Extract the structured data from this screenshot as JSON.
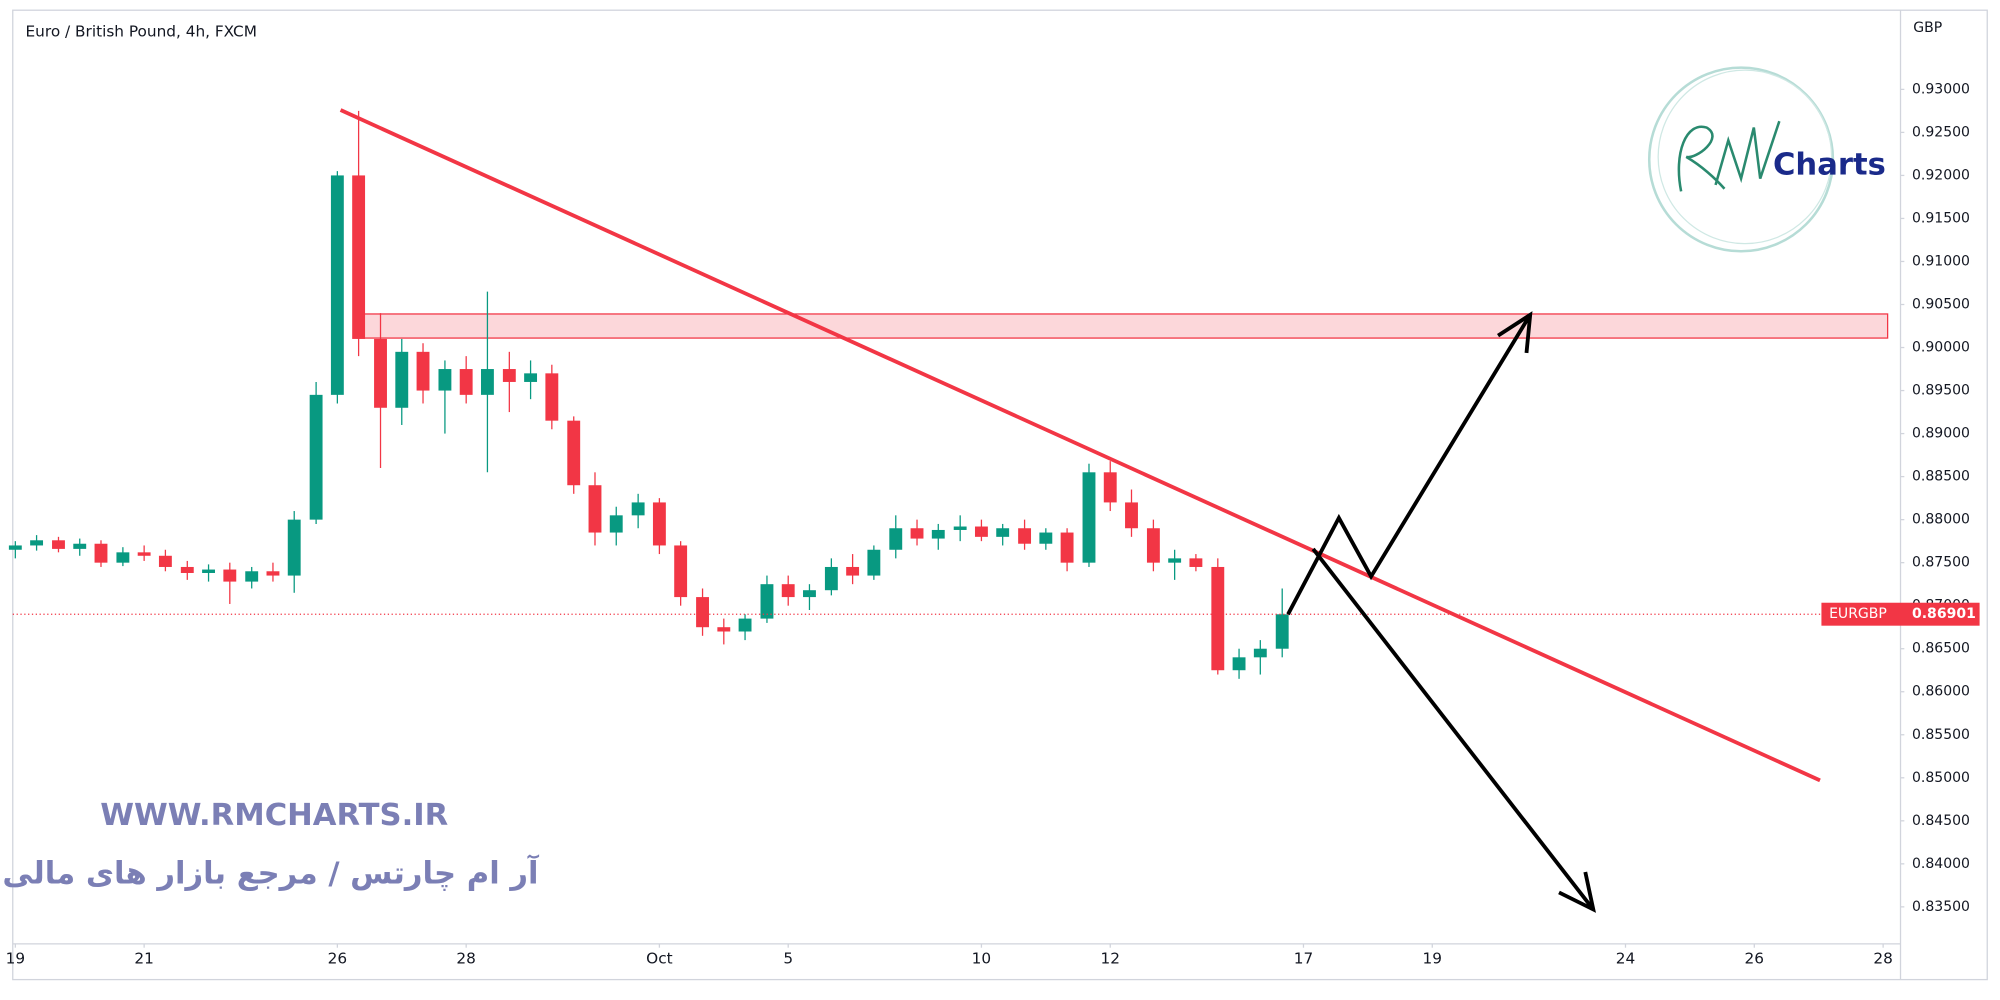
{
  "chart_data": {
    "type": "candlestick",
    "title": "Euro / British Pound, 4h, FXCM",
    "currency": "GBP",
    "x": [
      0,
      0.33,
      0.67,
      1,
      1.33,
      1.67,
      2,
      2.33,
      2.67,
      3,
      3.33,
      3.67,
      4,
      4.33,
      4.67,
      5,
      5.33,
      5.67,
      6,
      6.33,
      6.67,
      7,
      7.33,
      7.67,
      8,
      8.33,
      8.67,
      9,
      9.33,
      9.67,
      10,
      10.33,
      10.67,
      11,
      11.33,
      11.67,
      12,
      12.33,
      12.67,
      13,
      13.33,
      13.67,
      14,
      14.33,
      14.67,
      15,
      15.33,
      15.67,
      16,
      16.33,
      16.67,
      17,
      17.33,
      17.67,
      18,
      18.33,
      18.67,
      19,
      19.33,
      19.67
    ],
    "open": [
      0.8765,
      0.877,
      0.8776,
      0.8766,
      0.8772,
      0.875,
      0.8762,
      0.8758,
      0.8745,
      0.8738,
      0.8742,
      0.8728,
      0.874,
      0.8735,
      0.88,
      0.8945,
      0.92,
      0.901,
      0.893,
      0.8995,
      0.895,
      0.8975,
      0.8945,
      0.8975,
      0.896,
      0.897,
      0.8915,
      0.884,
      0.8785,
      0.8805,
      0.882,
      0.877,
      0.871,
      0.8675,
      0.867,
      0.8685,
      0.8725,
      0.871,
      0.8718,
      0.8745,
      0.8735,
      0.8765,
      0.879,
      0.8778,
      0.8788,
      0.8792,
      0.878,
      0.879,
      0.8772,
      0.8785,
      0.875,
      0.8855,
      0.882,
      0.879,
      0.875,
      0.8755,
      0.8745,
      0.8625,
      0.864,
      0.865
    ],
    "high": [
      0.8775,
      0.8782,
      0.878,
      0.8778,
      0.8776,
      0.8768,
      0.877,
      0.8765,
      0.8752,
      0.8748,
      0.875,
      0.8745,
      0.875,
      0.881,
      0.896,
      0.9205,
      0.9275,
      0.904,
      0.901,
      0.9005,
      0.8985,
      0.899,
      0.9065,
      0.8995,
      0.8985,
      0.898,
      0.892,
      0.8855,
      0.8815,
      0.883,
      0.8825,
      0.8775,
      0.872,
      0.8685,
      0.869,
      0.8735,
      0.8735,
      0.8725,
      0.8755,
      0.876,
      0.877,
      0.8805,
      0.88,
      0.8795,
      0.8805,
      0.88,
      0.8795,
      0.88,
      0.879,
      0.879,
      0.8865,
      0.8868,
      0.8835,
      0.88,
      0.8765,
      0.876,
      0.8755,
      0.865,
      0.866,
      0.872
    ],
    "low": [
      0.8755,
      0.8764,
      0.8762,
      0.8758,
      0.8745,
      0.8746,
      0.8752,
      0.874,
      0.873,
      0.8728,
      0.8702,
      0.872,
      0.8728,
      0.8715,
      0.8795,
      0.8935,
      0.899,
      0.886,
      0.891,
      0.8935,
      0.89,
      0.8935,
      0.8855,
      0.8925,
      0.894,
      0.8905,
      0.883,
      0.877,
      0.877,
      0.879,
      0.876,
      0.87,
      0.8665,
      0.8655,
      0.866,
      0.868,
      0.87,
      0.8695,
      0.8712,
      0.8725,
      0.873,
      0.8755,
      0.877,
      0.8765,
      0.8775,
      0.8775,
      0.877,
      0.8765,
      0.8765,
      0.874,
      0.8745,
      0.881,
      0.878,
      0.874,
      0.873,
      0.874,
      0.862,
      0.8615,
      0.862,
      0.864
    ],
    "close": [
      0.877,
      0.8776,
      0.8766,
      0.8772,
      0.875,
      0.8762,
      0.8758,
      0.8745,
      0.8738,
      0.8742,
      0.8728,
      0.874,
      0.8735,
      0.88,
      0.8945,
      0.92,
      0.901,
      0.893,
      0.8995,
      0.895,
      0.8975,
      0.8945,
      0.8975,
      0.896,
      0.897,
      0.8915,
      0.884,
      0.8785,
      0.8805,
      0.882,
      0.877,
      0.871,
      0.8675,
      0.867,
      0.8685,
      0.8725,
      0.871,
      0.8718,
      0.8745,
      0.8735,
      0.8765,
      0.879,
      0.8778,
      0.8788,
      0.8792,
      0.878,
      0.879,
      0.8772,
      0.8785,
      0.875,
      0.8855,
      0.882,
      0.879,
      0.875,
      0.8755,
      0.8745,
      0.8625,
      0.864,
      0.865,
      0.869
    ],
    "up_color": "#089981",
    "down_color": "#f23645",
    "xlim": [
      -0.04,
      29.27
    ],
    "xticks": [
      {
        "value": 0,
        "label": "19"
      },
      {
        "value": 2,
        "label": "21"
      },
      {
        "value": 5,
        "label": "26"
      },
      {
        "value": 7,
        "label": "28"
      },
      {
        "value": 10,
        "label": "Oct"
      },
      {
        "value": 12,
        "label": "5"
      },
      {
        "value": 15,
        "label": "10"
      },
      {
        "value": 17,
        "label": "12"
      },
      {
        "value": 20,
        "label": "17"
      },
      {
        "value": 22,
        "label": "19"
      },
      {
        "value": 25,
        "label": "24"
      },
      {
        "value": 27,
        "label": "26"
      },
      {
        "value": 29,
        "label": "28"
      }
    ],
    "ylim": [
      0.8307,
      0.9392
    ],
    "yticks": [
      {
        "value": 0.835,
        "label": "0.83500"
      },
      {
        "value": 0.84,
        "label": "0.84000"
      },
      {
        "value": 0.845,
        "label": "0.84500"
      },
      {
        "value": 0.85,
        "label": "0.85000"
      },
      {
        "value": 0.855,
        "label": "0.85500"
      },
      {
        "value": 0.86,
        "label": "0.86000"
      },
      {
        "value": 0.865,
        "label": "0.86500"
      },
      {
        "value": 0.87,
        "label": "0.87000"
      },
      {
        "value": 0.875,
        "label": "0.87500"
      },
      {
        "value": 0.88,
        "label": "0.88000"
      },
      {
        "value": 0.885,
        "label": "0.88500"
      },
      {
        "value": 0.89,
        "label": "0.89000"
      },
      {
        "value": 0.895,
        "label": "0.89500"
      },
      {
        "value": 0.9,
        "label": "0.90000"
      },
      {
        "value": 0.905,
        "label": "0.90500"
      },
      {
        "value": 0.91,
        "label": "0.91000"
      },
      {
        "value": 0.915,
        "label": "0.91500"
      },
      {
        "value": 0.92,
        "label": "0.92000"
      },
      {
        "value": 0.925,
        "label": "0.92500"
      },
      {
        "value": 0.93,
        "label": "0.93000"
      }
    ],
    "last_price": {
      "symbol": "EURGBP",
      "value": 0.86901,
      "color": "#f23645"
    },
    "drawings": {
      "trendline": {
        "x": [
          5.05,
          28.02
        ],
        "y": [
          0.9276,
          0.8497
        ],
        "color": "#f23645"
      },
      "zone": {
        "x": [
          5.31,
          29.07
        ],
        "y": [
          0.9011,
          0.9039
        ],
        "color": "#f23645"
      },
      "arrows": [
        {
          "x": [
            19.76,
            20.55,
            21.05,
            23.52
          ],
          "y": [
            0.869,
            0.8802,
            0.8734,
            0.9038
          ],
          "color": "#000000"
        },
        {
          "x": [
            20.15,
            24.5
          ],
          "y": [
            0.8766,
            0.8347
          ],
          "color": "#000000"
        }
      ]
    }
  },
  "watermark": {
    "url": "WWW.RMCHARTS.IR",
    "tagline": "آر ام چارتس / مرجع بازار های مالی"
  },
  "logo": {
    "text": "Charts"
  }
}
